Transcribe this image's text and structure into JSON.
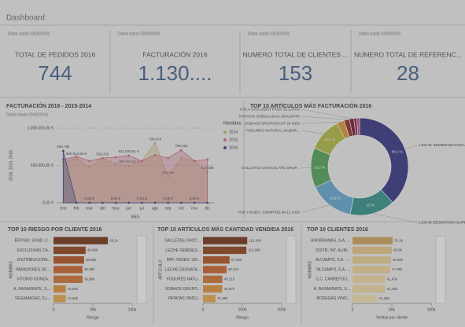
{
  "header": {
    "title": "Dashboard"
  },
  "kpis": [
    {
      "note": "Datos hasta 03/02/2016",
      "label": "TOTAL DE PEDIDOS 2016",
      "value": "744"
    },
    {
      "note": "Datos hasta 03/02/2016",
      "label": "FACTURACIÓN 2016",
      "value": "1.130...."
    },
    {
      "note": "Datos hasta 03/02/2016",
      "label": "NUMERO TOTAL DE CLIENTES ...",
      "value": "153"
    },
    {
      "note": "Datos hasta 03/02/2016",
      "label": "NUMERO TOTAL DE REFERENC...",
      "value": "28"
    }
  ],
  "chart_data": [
    {
      "type": "area",
      "title": "FACTURACIÓN 2016 - 2015-2014",
      "subtitle": "Datos hasta 03/02/2016",
      "categories": [
        "ene",
        "feb",
        "mar",
        "abr",
        "may",
        "jun",
        "jul",
        "ago",
        "sep",
        "oct",
        "nov",
        "dic"
      ],
      "series": [
        {
          "name": "2014",
          "color": "#c8a86a",
          "values": [
            540000,
            600614.5,
            480000,
            598310,
            520000,
            496263.52,
            560000,
            798970,
            350910,
            600000,
            560000,
            410560
          ],
          "value_labels": [
            null,
            "600.614,50 €",
            null,
            "598,31k",
            null,
            "496.263,52 €",
            null,
            "798,97k",
            "350,91k",
            null,
            null,
            "410,56k"
          ]
        },
        {
          "name": "2015",
          "color": "#c8607a",
          "values": [
            580000,
            620000,
            560000,
            600000,
            610000,
            631028.81,
            560000,
            640000,
            600000,
            705310,
            560000,
            580000
          ],
          "value_labels": [
            null,
            null,
            null,
            null,
            null,
            "631.028,81 €",
            null,
            null,
            null,
            "705,31k",
            null,
            null
          ]
        },
        {
          "name": "2016",
          "color": "#2a3f7a",
          "values": [
            694780,
            0,
            0,
            0,
            0,
            0,
            0,
            0,
            0,
            0,
            0,
            0
          ],
          "value_labels": [
            "694,78k",
            null,
            "0,00 €",
            null,
            "0,00 €",
            null,
            "0,00 €",
            null,
            "0,00 €",
            null,
            "0,00 €",
            null
          ]
        }
      ],
      "ylim": [
        0,
        1000000
      ],
      "yticks": [
        {
          "value": 0,
          "label": "0,00 €"
        },
        {
          "value": 500000,
          "label": "500.000,00 €"
        },
        {
          "value": 1000000,
          "label": "1.000.000,00 €"
        }
      ],
      "xlabel": "MES",
      "ylabel": "2016, 2014, 2015",
      "legend_title": "Medidas",
      "legend": "right",
      "grid": true
    },
    {
      "type": "donut",
      "title": "TOP 10 ARTÍCULOS MÁS FACTURACIÓN 2016",
      "categories": [
        "LECHE SEMIDESNATADA SUPE...",
        "LECHE DESNATADA SUPERVACA...",
        "PAP. HIGIEN. SIEMPRELIM 12 UDS",
        "GALLETAS CHOCOLATE GRUP...",
        "YOGURES NATURAL SABOR...",
        "SOBAOS GRUPOCAST 24 UDS",
        "PATATAS ONDULADAS SNACKFRI",
        "COLA GAS LIGHT PACK 12 LATAS",
        null,
        null
      ],
      "values": [
        38.1,
        15,
        14.9,
        13.2,
        11.1,
        2.5,
        1.8,
        1.5,
        1.0,
        0.9
      ],
      "value_labels": [
        "38,1 %",
        "15 %",
        "14,9 %",
        "13,2 %",
        "11,1 %",
        null,
        null,
        null,
        null,
        null
      ],
      "colors": [
        "#2b2a7a",
        "#2a8a80",
        "#5aa0c8",
        "#4a9a50",
        "#a8b03a",
        "#d09030",
        "#8a2020",
        "#6a1020",
        "#702050",
        "#c04060"
      ]
    },
    {
      "type": "barh",
      "title": "TOP 10 RIESGO POR CLIENTE 2016",
      "categories": [
        "EROSKI, SOAD. C...",
        "EXCLUSIVAS CA...",
        "DISTRIBUCIONE...",
        "PARADORES DE ...",
        "VITORIO GONZA...",
        "A. BASARRATE, S....",
        "VEGAMAGAZ, S.L..."
      ],
      "values": [
        69100,
        40860,
        38860,
        36860,
        36860,
        15650,
        15650
      ],
      "value_labels": [
        "69,1k",
        "40,86k",
        "38,86k",
        "36,86k",
        "36,86k",
        "15,65k",
        "15,65k"
      ],
      "colors": [
        "#6b2a0a",
        "#8a3a10",
        "#a84a18",
        "#c05a20",
        "#c86a28",
        "#d88a30",
        "#e0a040"
      ],
      "xlim": [
        0,
        100000
      ],
      "xticks": [
        0,
        {
          "value": 50000,
          "label": "50k"
        },
        {
          "value": 100000,
          "label": "100k"
        }
      ],
      "xlabel": "Riesgo",
      "ylabel": "NOMBRE"
    },
    {
      "type": "barh",
      "title": "TOP 10 ARTÍCULOS MÁS CANTIDAD VENDIDA 2016",
      "categories": [
        "GALLETAS CHOC...",
        "LECHE SEMIDES...",
        "PAP. HIGIEN. GR...",
        "LECHE DESNATA...",
        "YOGURES NATU...",
        "SOBAOS GRUPO...",
        "PATATAS ONDU..."
      ],
      "values": [
        112460,
        110360,
        67580,
        60110,
        49210,
        48970,
        31890
      ],
      "value_labels": [
        "112,46k",
        "110,36k",
        "67,58k",
        "60,11k",
        "49,21k",
        "48,97k",
        "31,89k"
      ],
      "colors": [
        "#6b2a0a",
        "#8a3a10",
        "#a84a18",
        "#c05a20",
        "#c86a28",
        "#d88a30",
        "#e0a040"
      ],
      "xlim": [
        0,
        200000
      ],
      "xticks": [
        0,
        {
          "value": 100000,
          "label": "100k"
        },
        {
          "value": 200000,
          "label": "200k"
        }
      ],
      "xlabel": "Riesgo",
      "ylabel": "ARTÍCULO"
    },
    {
      "type": "barh",
      "title": "TOP 10 CLIENTES 2016",
      "categories": [
        "AHORRAMAS, S.A. ...",
        "DISTR. INT. ALIM...",
        "ALCAMPO, S.A. -...",
        "\"ALCAMPO, S.A. ...",
        "C.C. CARREFOU...",
        "A. BASARRATE, S...",
        "BODEGAS VINO..."
      ],
      "values": [
        51100,
        49900,
        48650,
        47980,
        41450,
        41450,
        31360
      ],
      "value_labels": [
        "51,1k",
        "49,9k",
        "48,65k",
        "47,98k",
        "41,45k",
        "41,45k",
        "31,36k"
      ],
      "colors": [
        "#c89a50",
        "#e0c080",
        "#e4c88a",
        "#e6cc90",
        "#e8d098",
        "#e8d098",
        "#ecd8a8"
      ],
      "xlim": [
        0,
        100000
      ],
      "xticks": [
        0,
        {
          "value": 50000,
          "label": "50k"
        },
        {
          "value": 100000,
          "label": "100k"
        }
      ],
      "xlabel": "Ventas por cliente",
      "ylabel": "NOMBRE"
    }
  ]
}
